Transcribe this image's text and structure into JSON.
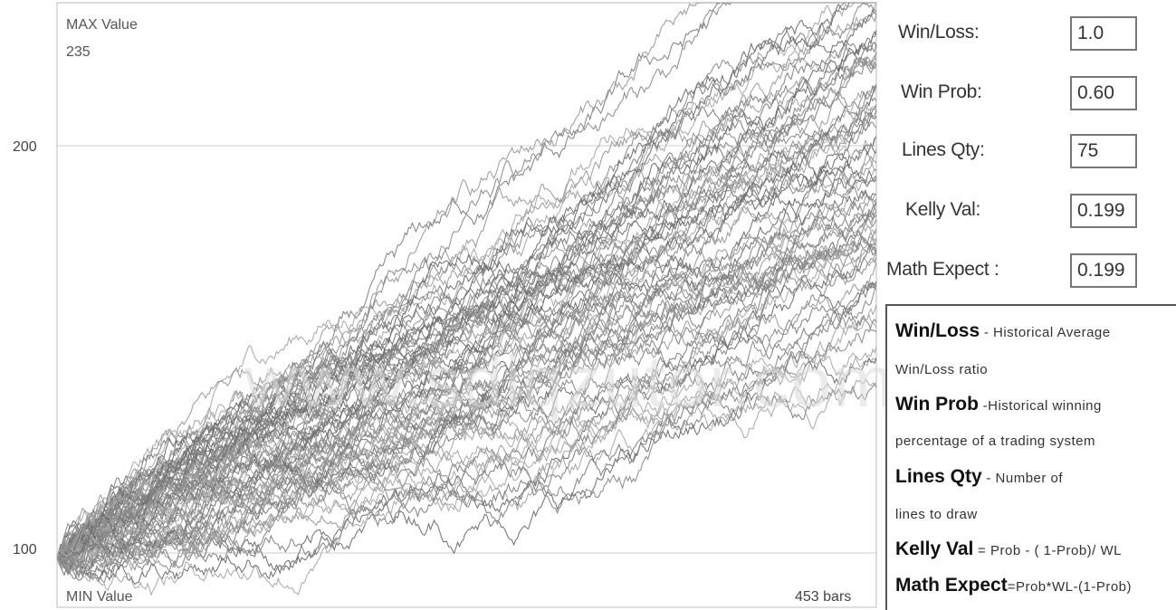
{
  "chart_data": {
    "type": "line",
    "max_label": "MAX Value",
    "max_value": "235",
    "min_label": "MIN Value",
    "bars_label": "453 bars",
    "y_ticks": [
      "200",
      "100"
    ],
    "ylim": [
      88,
      235
    ],
    "x_count": 453,
    "start_value": 100,
    "lines_qty": 75,
    "end_band": [
      165,
      235
    ],
    "line_colors": [
      "#808080",
      "#9a9a9a",
      "#6e6e6e",
      "#a8a8a8",
      "#8a8a8a"
    ]
  },
  "params": [
    {
      "label": "Win/Loss:",
      "value": "1.0"
    },
    {
      "label": "Win Prob:",
      "value": "0.60"
    },
    {
      "label": "Lines Qty:",
      "value": "75"
    },
    {
      "label": "Kelly Val:",
      "value": "0.199"
    },
    {
      "label": "Math Expect :",
      "value": "0.199"
    }
  ],
  "legend": {
    "l1_term": "Win/Loss",
    "l1_desc": " - Historical Average",
    "l2_desc": "Win/Loss ratio",
    "l3_term": "Win Prob",
    "l3_desc": " -Historical winning",
    "l4_desc": "percentage of a trading system",
    "l5_term": "Lines Qty",
    "l5_desc": " - Number of",
    "l6_desc": "lines to draw",
    "l7_term": "Kelly Val",
    "l7_desc": " = Prob - ( 1-Prob)/ WL",
    "l8_term": "Math Expect",
    "l8_desc": "=Prob*WL-(1-Prob)"
  },
  "watermark": "www.sdiqzutor.com"
}
